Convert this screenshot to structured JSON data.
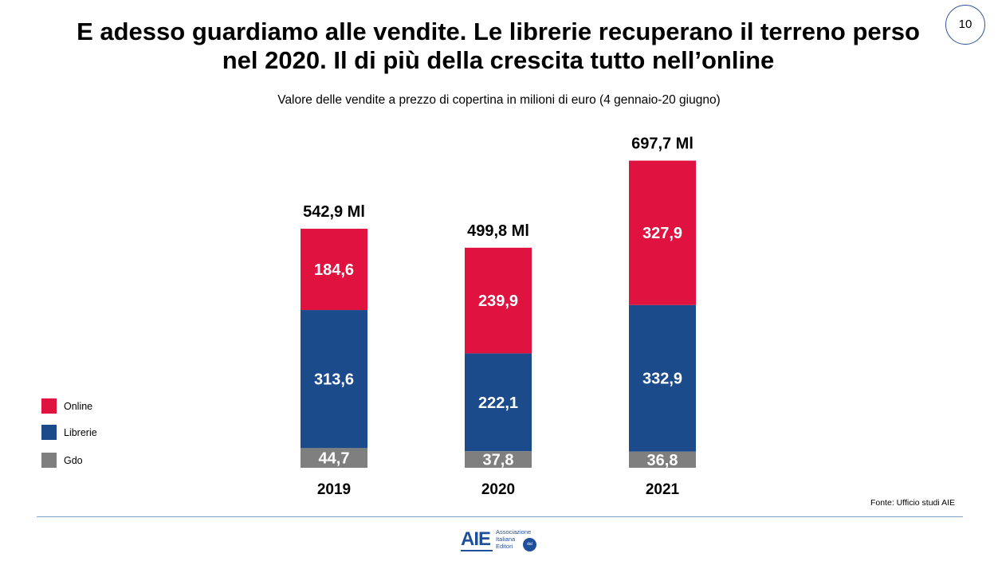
{
  "slide": {
    "title": "E adesso guardiamo alle vendite. Le librerie recuperano il terreno perso nel 2020. Il di più della crescita tutto nell’online",
    "page_number": "10",
    "subtitle": "Valore delle vendite a prezzo di copertina in milioni di euro (4 gennaio-20 giugno)",
    "source": "Fonte: Ufficio studi AIE",
    "logo": {
      "mark": "AIE",
      "text_lines": [
        "Associazione",
        "Italiana",
        "Editori"
      ],
      "badge": "dal 1869"
    }
  },
  "chart_data": {
    "type": "bar",
    "stacked": true,
    "categories": [
      "2019",
      "2020",
      "2021"
    ],
    "series": [
      {
        "name": "Gdo",
        "color": "#7f7f7f",
        "values": [
          44.7,
          37.8,
          36.8
        ],
        "labels": [
          "44,7",
          "37,8",
          "36,8"
        ]
      },
      {
        "name": "Librerie",
        "color": "#1c4b8b",
        "values": [
          313.6,
          222.1,
          332.9
        ],
        "labels": [
          "313,6",
          "222,1",
          "332,9"
        ]
      },
      {
        "name": "Online",
        "color": "#e0123f",
        "values": [
          184.6,
          239.9,
          327.9
        ],
        "labels": [
          "184,6",
          "239,9",
          "327,9"
        ]
      }
    ],
    "totals": [
      "542,9 Ml",
      "499,8 Ml",
      "697,7 Ml"
    ],
    "title": "",
    "xlabel": "",
    "ylabel": "",
    "legend_position": "left",
    "legend_order": [
      "Online",
      "Librerie",
      "Gdo"
    ],
    "grid": false
  }
}
